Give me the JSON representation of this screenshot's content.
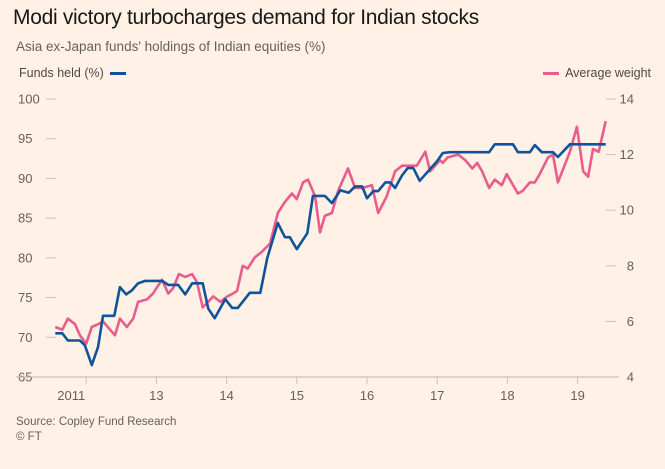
{
  "chart_data": {
    "type": "line",
    "title": "Modi victory turbocharges demand for Indian stocks",
    "subtitle": "Asia ex-Japan funds' holdings of Indian equities (%)",
    "source": "Source: Copley Fund Research",
    "copyright": "© FT",
    "x_tick_labels": [
      {
        "year": 2011.56,
        "label": "2011"
      },
      {
        "year": 2013,
        "label": "13"
      },
      {
        "year": 2014,
        "label": "14"
      },
      {
        "year": 2015,
        "label": "15"
      },
      {
        "year": 2016,
        "label": "16"
      },
      {
        "year": 2017,
        "label": "17"
      },
      {
        "year": 2018,
        "label": "18"
      },
      {
        "year": 2019,
        "label": "19"
      }
    ],
    "x_ticks": [
      2012,
      2013,
      2014,
      2015,
      2016,
      2017,
      2018,
      2019
    ],
    "xlim": [
      2011,
      2019.6
    ],
    "y_left": {
      "label": "Funds held (%)",
      "ylim": [
        65,
        100
      ],
      "ticks": [
        "65",
        "70",
        "75",
        "80",
        "85",
        "90",
        "95",
        "100"
      ]
    },
    "y_right": {
      "label": "Average weight",
      "ylim": [
        4,
        14
      ],
      "ticks": [
        "4",
        "6",
        "8",
        "10",
        "12",
        "14"
      ]
    },
    "grid": false,
    "series": [
      {
        "name": "Funds held (%)",
        "axis": "left",
        "color": "#0f5499",
        "points": [
          [
            2011.56,
            70.5
          ],
          [
            2011.66,
            70.5
          ],
          [
            2011.74,
            69.6
          ],
          [
            2011.91,
            69.6
          ],
          [
            2011.98,
            69.0
          ],
          [
            2012.08,
            66.5
          ],
          [
            2012.17,
            68.8
          ],
          [
            2012.24,
            72.7
          ],
          [
            2012.4,
            72.7
          ],
          [
            2012.48,
            76.3
          ],
          [
            2012.57,
            75.4
          ],
          [
            2012.65,
            75.9
          ],
          [
            2012.74,
            76.8
          ],
          [
            2012.84,
            77.1
          ],
          [
            2013.08,
            77.1
          ],
          [
            2013.17,
            76.6
          ],
          [
            2013.31,
            76.6
          ],
          [
            2013.41,
            75.4
          ],
          [
            2013.51,
            76.8
          ],
          [
            2013.66,
            76.8
          ],
          [
            2013.74,
            73.6
          ],
          [
            2013.83,
            72.4
          ],
          [
            2013.98,
            74.8
          ],
          [
            2014.08,
            73.7
          ],
          [
            2014.16,
            73.7
          ],
          [
            2014.33,
            75.6
          ],
          [
            2014.48,
            75.6
          ],
          [
            2014.58,
            80.0
          ],
          [
            2014.73,
            84.4
          ],
          [
            2014.83,
            82.6
          ],
          [
            2014.9,
            82.6
          ],
          [
            2015.0,
            81.1
          ],
          [
            2015.15,
            83.1
          ],
          [
            2015.23,
            87.8
          ],
          [
            2015.4,
            87.8
          ],
          [
            2015.5,
            86.9
          ],
          [
            2015.62,
            88.5
          ],
          [
            2015.74,
            88.2
          ],
          [
            2015.83,
            89.0
          ],
          [
            2015.93,
            89.0
          ],
          [
            2016.0,
            87.5
          ],
          [
            2016.09,
            88.4
          ],
          [
            2016.16,
            88.4
          ],
          [
            2016.26,
            89.5
          ],
          [
            2016.33,
            89.5
          ],
          [
            2016.4,
            88.8
          ],
          [
            2016.5,
            90.4
          ],
          [
            2016.58,
            91.3
          ],
          [
            2016.66,
            91.3
          ],
          [
            2016.75,
            89.7
          ],
          [
            2017.0,
            92.2
          ],
          [
            2017.08,
            93.2
          ],
          [
            2017.18,
            93.3
          ],
          [
            2017.74,
            93.3
          ],
          [
            2017.82,
            94.3
          ],
          [
            2018.08,
            94.3
          ],
          [
            2018.15,
            93.3
          ],
          [
            2018.32,
            93.3
          ],
          [
            2018.39,
            94.2
          ],
          [
            2018.49,
            93.3
          ],
          [
            2018.65,
            93.3
          ],
          [
            2018.72,
            92.7
          ],
          [
            2018.89,
            94.3
          ],
          [
            2019.4,
            94.3
          ]
        ]
      },
      {
        "name": "Average weight",
        "axis": "right",
        "color": "#e95d8c",
        "points": [
          [
            2011.56,
            5.8
          ],
          [
            2011.66,
            5.7
          ],
          [
            2011.74,
            6.1
          ],
          [
            2011.84,
            5.9
          ],
          [
            2011.91,
            5.5
          ],
          [
            2012.0,
            5.2
          ],
          [
            2012.08,
            5.8
          ],
          [
            2012.17,
            5.9
          ],
          [
            2012.24,
            6.0
          ],
          [
            2012.34,
            5.7
          ],
          [
            2012.41,
            5.5
          ],
          [
            2012.48,
            6.1
          ],
          [
            2012.58,
            5.8
          ],
          [
            2012.67,
            6.1
          ],
          [
            2012.74,
            6.7
          ],
          [
            2012.87,
            6.8
          ],
          [
            2012.95,
            7.0
          ],
          [
            2013.08,
            7.5
          ],
          [
            2013.17,
            7.0
          ],
          [
            2013.24,
            7.2
          ],
          [
            2013.32,
            7.7
          ],
          [
            2013.41,
            7.6
          ],
          [
            2013.51,
            7.7
          ],
          [
            2013.58,
            7.4
          ],
          [
            2013.66,
            6.5
          ],
          [
            2013.81,
            6.9
          ],
          [
            2013.91,
            6.7
          ],
          [
            2014.01,
            6.9
          ],
          [
            2014.09,
            7.0
          ],
          [
            2014.15,
            7.1
          ],
          [
            2014.23,
            8.0
          ],
          [
            2014.3,
            7.9
          ],
          [
            2014.4,
            8.3
          ],
          [
            2014.5,
            8.5
          ],
          [
            2014.62,
            8.8
          ],
          [
            2014.73,
            9.9
          ],
          [
            2014.83,
            10.3
          ],
          [
            2014.93,
            10.6
          ],
          [
            2015.0,
            10.4
          ],
          [
            2015.09,
            11.0
          ],
          [
            2015.16,
            11.1
          ],
          [
            2015.26,
            10.5
          ],
          [
            2015.33,
            9.2
          ],
          [
            2015.4,
            9.8
          ],
          [
            2015.5,
            9.9
          ],
          [
            2015.59,
            10.7
          ],
          [
            2015.73,
            11.5
          ],
          [
            2015.83,
            10.8
          ],
          [
            2015.93,
            10.8
          ],
          [
            2016.07,
            10.9
          ],
          [
            2016.16,
            9.9
          ],
          [
            2016.28,
            10.5
          ],
          [
            2016.4,
            11.4
          ],
          [
            2016.5,
            11.6
          ],
          [
            2016.61,
            11.6
          ],
          [
            2016.71,
            11.6
          ],
          [
            2016.83,
            12.1
          ],
          [
            2016.9,
            11.4
          ],
          [
            2017.04,
            11.8
          ],
          [
            2017.08,
            11.7
          ],
          [
            2017.15,
            11.9
          ],
          [
            2017.3,
            12.0
          ],
          [
            2017.4,
            11.8
          ],
          [
            2017.5,
            11.5
          ],
          [
            2017.57,
            11.7
          ],
          [
            2017.64,
            11.4
          ],
          [
            2017.74,
            10.8
          ],
          [
            2017.82,
            11.1
          ],
          [
            2017.92,
            10.9
          ],
          [
            2017.99,
            11.3
          ],
          [
            2018.15,
            10.6
          ],
          [
            2018.22,
            10.7
          ],
          [
            2018.32,
            11.0
          ],
          [
            2018.39,
            11.0
          ],
          [
            2018.46,
            11.3
          ],
          [
            2018.58,
            11.9
          ],
          [
            2018.65,
            12.0
          ],
          [
            2018.72,
            11.0
          ],
          [
            2018.89,
            12.1
          ],
          [
            2018.99,
            13.0
          ],
          [
            2019.08,
            11.4
          ],
          [
            2019.15,
            11.2
          ],
          [
            2019.22,
            12.2
          ],
          [
            2019.3,
            12.1
          ],
          [
            2019.4,
            13.2
          ]
        ]
      }
    ]
  }
}
